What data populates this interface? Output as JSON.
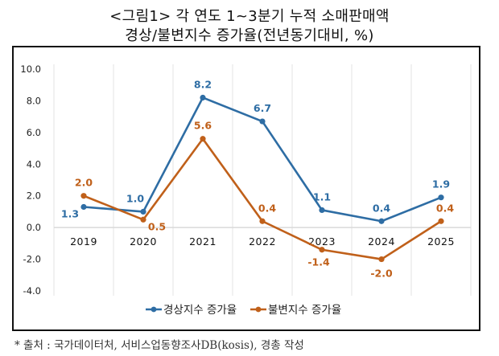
{
  "title_line1": "<그림1> 각 연도 1~3분기 누적 소매판매액",
  "title_line2": "경상/불변지수 증가율(전년동기대비, %)",
  "source_note": "* 출처 : 국가데이터처, 서비스업동향조사DB(kosis), 경총 작성",
  "colors": {
    "nominal": "#2E6DA4",
    "real": "#C0601A",
    "grid": "#E3E3E3",
    "frame": "#111111"
  },
  "chart_data": {
    "type": "line",
    "title": "<그림1> 각 연도 1~3분기 누적 소매판매액 경상/불변지수 증가율(전년동기대비, %)",
    "xlabel": "",
    "ylabel": "",
    "categories": [
      "2019",
      "2020",
      "2021",
      "2022",
      "2023",
      "2024",
      "2025"
    ],
    "ylim": [
      -4.0,
      10.0
    ],
    "yticks": [
      10.0,
      8.0,
      6.0,
      4.0,
      2.0,
      0.0,
      -2.0,
      -4.0
    ],
    "ytick_labels": [
      "10.0",
      "8.0",
      "6.0",
      "4.0",
      "2.0",
      "0.0",
      "-2.0",
      "-4.0"
    ],
    "grid": "vertical category separators and zero line",
    "legend_position": "bottom",
    "series": [
      {
        "name": "경상지수 증가율",
        "color": "#2E6DA4",
        "values": [
          1.3,
          1.0,
          8.2,
          6.7,
          1.1,
          0.4,
          1.9
        ],
        "labels": [
          "1.3",
          "1.0",
          "8.2",
          "6.7",
          "1.1",
          "0.4",
          "1.9"
        ]
      },
      {
        "name": "불변지수 증가율",
        "color": "#C0601A",
        "values": [
          2.0,
          0.5,
          5.6,
          0.4,
          -1.4,
          -2.0,
          0.4
        ],
        "labels": [
          "2.0",
          "0.5",
          "5.6",
          "0.4",
          "-1.4",
          "-2.0",
          "0.4"
        ]
      }
    ]
  }
}
